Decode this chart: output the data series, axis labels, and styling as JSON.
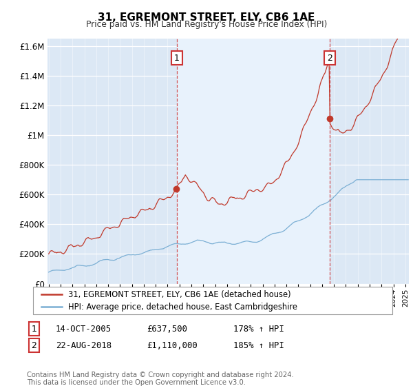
{
  "title": "31, EGREMONT STREET, ELY, CB6 1AE",
  "subtitle": "Price paid vs. HM Land Registry's House Price Index (HPI)",
  "plot_background": "#dce8f5",
  "highlight_background": "#e8f2fc",
  "ylim": [
    0,
    1600000
  ],
  "yticks": [
    0,
    200000,
    400000,
    600000,
    800000,
    1000000,
    1200000,
    1400000,
    1600000
  ],
  "ytick_labels": [
    "£0",
    "£200K",
    "£400K",
    "£600K",
    "£800K",
    "£1M",
    "£1.2M",
    "£1.4M",
    "£1.6M"
  ],
  "hpi_color": "#7bafd4",
  "price_color": "#c0392b",
  "sale1_date": 2005.79,
  "sale1_price": 637500,
  "sale1_label": "1",
  "sale2_date": 2018.64,
  "sale2_price": 1110000,
  "sale2_label": "2",
  "legend_line1": "31, EGREMONT STREET, ELY, CB6 1AE (detached house)",
  "legend_line2": "HPI: Average price, detached house, East Cambridgeshire",
  "table_row1": [
    "1",
    "14-OCT-2005",
    "£637,500",
    "178% ↑ HPI"
  ],
  "table_row2": [
    "2",
    "22-AUG-2018",
    "£1,110,000",
    "185% ↑ HPI"
  ],
  "footer": "Contains HM Land Registry data © Crown copyright and database right 2024.\nThis data is licensed under the Open Government Licence v3.0.",
  "xmin": 1995,
  "xmax": 2025
}
